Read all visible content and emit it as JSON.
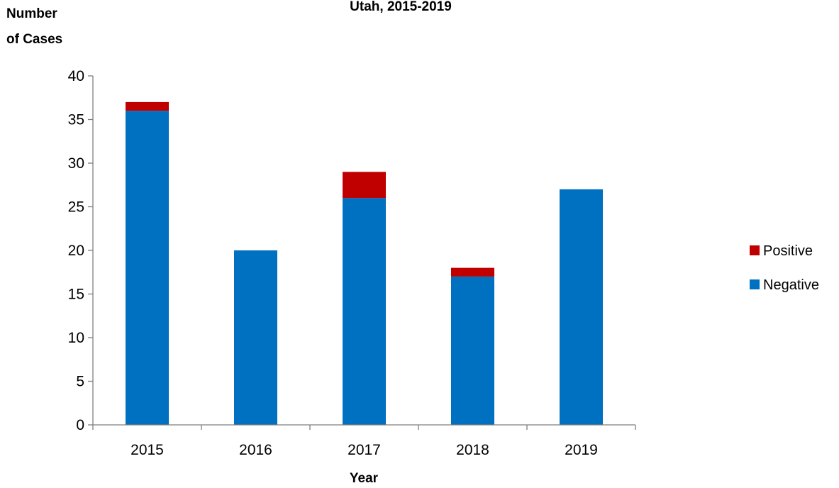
{
  "chart_data": {
    "type": "bar",
    "stacked": true,
    "title": "Utah, 2015-2019",
    "ylabel": [
      "Number",
      "of Cases"
    ],
    "xlabel": "Year",
    "categories": [
      "2015",
      "2016",
      "2017",
      "2018",
      "2019"
    ],
    "ylim": [
      0,
      40
    ],
    "yticks": [
      0,
      5,
      10,
      15,
      20,
      25,
      30,
      35,
      40
    ],
    "grid": false,
    "legend_position": "right",
    "series": [
      {
        "name": "Negative",
        "values": [
          36,
          20,
          26,
          17,
          27
        ],
        "color": "#0070C0"
      },
      {
        "name": "Positive",
        "values": [
          1,
          0,
          3,
          1,
          0
        ],
        "color": "#C00000"
      }
    ],
    "legend_order": [
      "Positive",
      "Negative"
    ]
  }
}
